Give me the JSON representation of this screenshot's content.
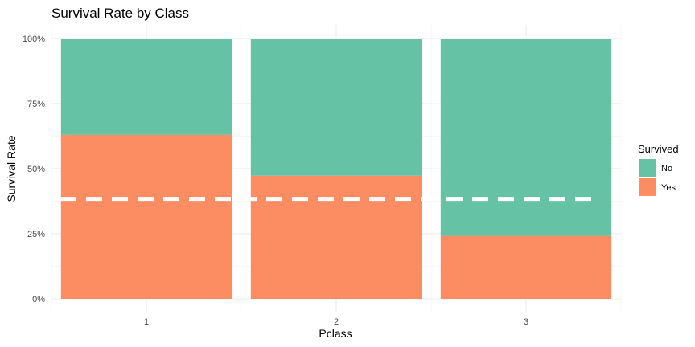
{
  "chart_data": {
    "type": "bar",
    "stacked": true,
    "title": "Survival Rate by Class",
    "xlabel": "Pclass",
    "ylabel": "Survival Rate",
    "categories": [
      "1",
      "2",
      "3"
    ],
    "ylim": [
      0,
      1
    ],
    "yticks": [
      0,
      0.25,
      0.5,
      0.75,
      1
    ],
    "ytick_labels": [
      "0%",
      "25%",
      "50%",
      "75%",
      "100%"
    ],
    "series": [
      {
        "name": "Yes",
        "values": [
          0.63,
          0.473,
          0.242
        ],
        "color": "#FC8D62"
      },
      {
        "name": "No",
        "values": [
          0.37,
          0.527,
          0.758
        ],
        "color": "#66C2A5"
      }
    ],
    "reference_line": {
      "y": 0.384,
      "style": "dashed",
      "color": "#ffffff"
    },
    "legend": {
      "title": "Survived",
      "position": "right",
      "items": [
        {
          "label": "No",
          "color": "#66C2A5"
        },
        {
          "label": "Yes",
          "color": "#FC8D62"
        }
      ]
    },
    "grid": true
  }
}
